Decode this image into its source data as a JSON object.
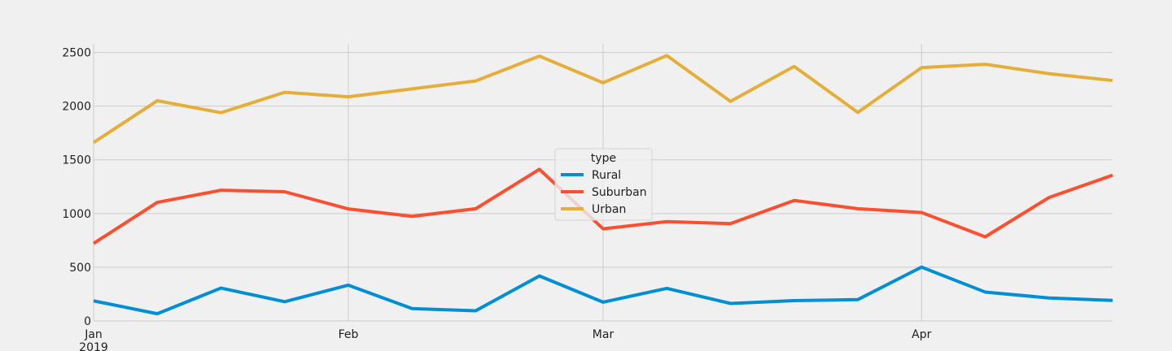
{
  "chart_data": {
    "type": "line",
    "title": "",
    "xlabel": "",
    "ylabel": "",
    "x": [
      "2019-01-06",
      "2019-01-13",
      "2019-01-20",
      "2019-01-27",
      "2019-02-03",
      "2019-02-10",
      "2019-02-17",
      "2019-02-24",
      "2019-03-03",
      "2019-03-10",
      "2019-03-17",
      "2019-03-24",
      "2019-03-31",
      "2019-04-07",
      "2019-04-14",
      "2019-04-21",
      "2019-04-28"
    ],
    "xlim": [
      "2019-01-06",
      "2019-04-28"
    ],
    "ylim": [
      0,
      2580
    ],
    "x_ticks": [
      {
        "date": "2019-01-06",
        "label": "Jan",
        "sublabel": "2019"
      },
      {
        "date": "2019-02-03",
        "label": "Feb",
        "sublabel": ""
      },
      {
        "date": "2019-03-03",
        "label": "Mar",
        "sublabel": ""
      },
      {
        "date": "2019-04-07",
        "label": "Apr",
        "sublabel": ""
      }
    ],
    "y_ticks": [
      0,
      500,
      1000,
      1500,
      2000,
      2500
    ],
    "grid": true,
    "legend": {
      "title": "type",
      "placement": "center"
    },
    "series": [
      {
        "name": "Rural",
        "color": "#008fd5",
        "values": [
          187,
          67,
          306,
          179,
          333,
          115,
          95,
          419,
          175,
          303,
          163,
          189,
          199,
          501,
          269,
          214,
          191
        ]
      },
      {
        "name": "Suburban",
        "color": "#fc4f30",
        "values": [
          722,
          1104,
          1217,
          1203,
          1043,
          974,
          1045,
          1412,
          858,
          925,
          906,
          1122,
          1045,
          1010,
          783,
          1149,
          1357
        ]
      },
      {
        "name": "Urban",
        "color": "#e5ae38",
        "values": [
          1661,
          2051,
          1939,
          2129,
          2087,
          2161,
          2235,
          2466,
          2218,
          2471,
          2045,
          2370,
          1942,
          2359,
          2390,
          2303,
          2239
        ]
      }
    ]
  }
}
